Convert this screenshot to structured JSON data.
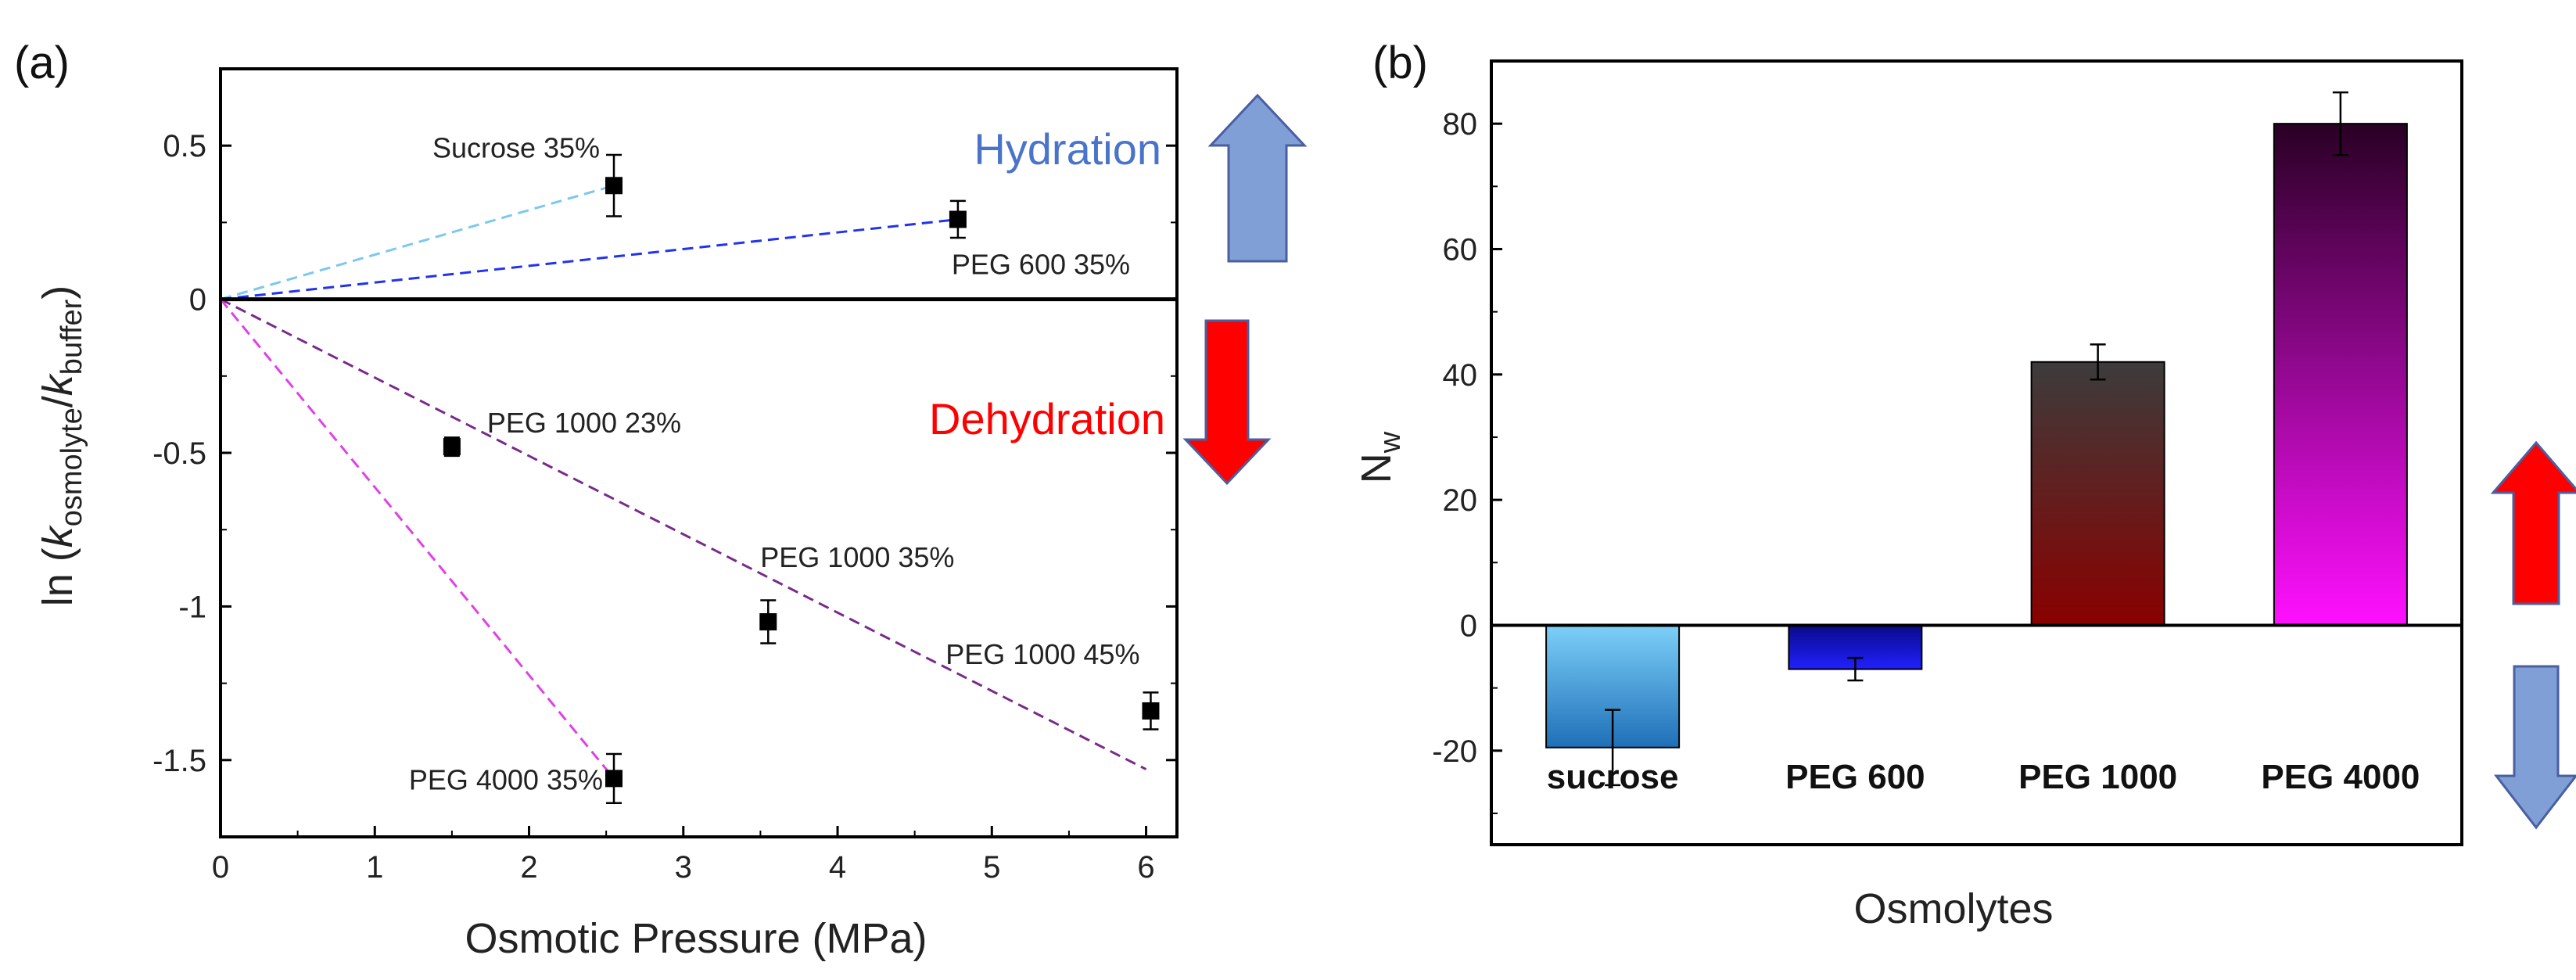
{
  "chart_data": [
    {
      "type": "scatter",
      "panel_label": "(a)",
      "xlabel": "Osmotic Pressure (MPa)",
      "ylabel_parts": {
        "prefix": "ln (",
        "k1": "k",
        "sub1": "osmolyte",
        "slash": "/",
        "k2": "k",
        "sub2": "buffer",
        "suffix": ")"
      },
      "xlim": [
        0,
        6.2
      ],
      "ylim": [
        -1.75,
        0.75
      ],
      "xticks": [
        0,
        1,
        2,
        3,
        4,
        5,
        6
      ],
      "xtick_labels": [
        "0",
        "1",
        "2",
        "3",
        "4",
        "5",
        "6"
      ],
      "yticks": [
        0.5,
        0,
        -0.5,
        -1,
        -1.5
      ],
      "ytick_labels": [
        "0.5",
        "0",
        "-0.5",
        "-1",
        "-1.5"
      ],
      "points": [
        {
          "label": "Sucrose 35%",
          "x": 2.55,
          "y": 0.37,
          "err": 0.1
        },
        {
          "label": "PEG 600 35%",
          "x": 4.78,
          "y": 0.26,
          "err": 0.06
        },
        {
          "label": "PEG 1000 23%",
          "x": 1.5,
          "y": -0.48,
          "err": 0.03
        },
        {
          "label": "PEG 1000 35%",
          "x": 3.55,
          "y": -1.05,
          "err": 0.07
        },
        {
          "label": "PEG 1000 45%",
          "x": 6.03,
          "y": -1.34,
          "err": 0.06
        },
        {
          "label": "PEG 4000 35%",
          "x": 2.55,
          "y": -1.56,
          "err": 0.08
        }
      ],
      "fit_lines": [
        {
          "name": "sucrose fit",
          "color": "#7cc8f0",
          "x": [
            0,
            2.55
          ],
          "y": [
            0,
            0.37
          ]
        },
        {
          "name": "PEG 600 fit",
          "color": "#2233ee",
          "x": [
            0,
            4.78
          ],
          "y": [
            0,
            0.26
          ]
        },
        {
          "name": "PEG 1000 fit",
          "color": "#7a2a8a",
          "x": [
            0,
            6.0
          ],
          "y": [
            0,
            -1.53
          ]
        },
        {
          "name": "PEG 4000 fit",
          "color": "#e040e8",
          "x": [
            0,
            2.55
          ],
          "y": [
            0,
            -1.56
          ]
        }
      ],
      "hydration_label": "Hydration",
      "dehydration_label": "Dehydration",
      "colors": {
        "hydration": "#4a74c9",
        "dehydration": "#ff0000",
        "arrow_blue": "#7f9fd6",
        "arrow_edge": "#4a5fa0",
        "arrow_red": "#ff0000"
      }
    },
    {
      "type": "bar",
      "panel_label": "(b)",
      "xlabel": "Osmolytes",
      "ylabel": "N",
      "ylabel_sub": "w",
      "ylim": [
        -35,
        90
      ],
      "yticks": [
        -20,
        0,
        20,
        40,
        60,
        80
      ],
      "ytick_labels": [
        "-20",
        "0",
        "20",
        "40",
        "60",
        "80"
      ],
      "categories": [
        "sucrose",
        "PEG 600",
        "PEG 1000",
        "PEG 4000"
      ],
      "values": [
        -19.5,
        -7,
        42,
        80
      ],
      "errors": [
        6,
        1.8,
        2.8,
        5
      ],
      "bar_colors": [
        {
          "top": "#7cd0f8",
          "bottom": "#1f6fb8"
        },
        {
          "top": "#0a0a8a",
          "bottom": "#2020ff"
        },
        {
          "top": "#3c3c3c",
          "bottom": "#8a0000"
        },
        {
          "top": "#2a0025",
          "bottom": "#ff10ff"
        }
      ]
    }
  ]
}
